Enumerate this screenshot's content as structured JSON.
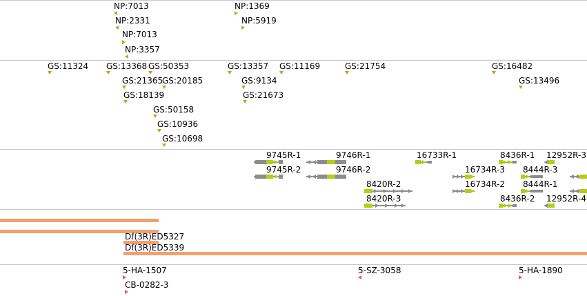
{
  "np_track": {
    "features": [
      {
        "label": "NP:7013",
        "strand": "left"
      },
      {
        "label": "NP:2331",
        "strand": "left"
      },
      {
        "label": "NP:7013",
        "strand": "right"
      },
      {
        "label": "NP:3357",
        "strand": "left"
      },
      {
        "label": "NP:1369",
        "strand": "right"
      },
      {
        "label": "NP:5919",
        "strand": "right"
      }
    ]
  },
  "gs_track": {
    "features": [
      {
        "label": "GS:11324"
      },
      {
        "label": "GS:13368"
      },
      {
        "label": "GS:50353"
      },
      {
        "label": "GS:21365"
      },
      {
        "label": "GS:20185"
      },
      {
        "label": "GS:18139"
      },
      {
        "label": "GS:50158"
      },
      {
        "label": "GS:10936"
      },
      {
        "label": "GS:10698"
      },
      {
        "label": "GS:13357"
      },
      {
        "label": "GS:11169"
      },
      {
        "label": "GS:9134"
      },
      {
        "label": "GS:21673"
      },
      {
        "label": "GS:21754"
      },
      {
        "label": "GS:16482"
      },
      {
        "label": "GS:13496"
      }
    ]
  },
  "transcript_track": {
    "features": [
      {
        "label": "9745R-1"
      },
      {
        "label": "9746R-1"
      },
      {
        "label": "16733R-1"
      },
      {
        "label": "8436R-1"
      },
      {
        "label": "12952R-3"
      },
      {
        "label": "9745R-2"
      },
      {
        "label": "9746R-2"
      },
      {
        "label": "16734R-3"
      },
      {
        "label": "8444R-3"
      },
      {
        "label": "8420R-2"
      },
      {
        "label": "16734R-2"
      },
      {
        "label": "8444R-1"
      },
      {
        "label": "8420R-3"
      },
      {
        "label": "8436R-2"
      },
      {
        "label": "12952R-4"
      }
    ]
  },
  "deficiency_track": {
    "features": [
      {
        "label": "Df(3R)ED5327"
      },
      {
        "label": "Df(3R)ED5339"
      }
    ]
  },
  "insertion_track": {
    "features": [
      {
        "label": "5-HA-1507",
        "strand": "right"
      },
      {
        "label": "CB-0282-3",
        "strand": "right"
      },
      {
        "label": "5-SZ-3058",
        "strand": "left"
      },
      {
        "label": "5-HA-1890",
        "strand": "right"
      }
    ]
  },
  "colors": {
    "np_marker": "#d49a12",
    "gs_marker": "#d49a12",
    "gene_body": "#8c8c8c",
    "gene_exon": "#b5cc18",
    "deficiency_bar": "#f2a070",
    "insertion_marker": "#f05a3a",
    "divider": "#c8c8c8"
  }
}
